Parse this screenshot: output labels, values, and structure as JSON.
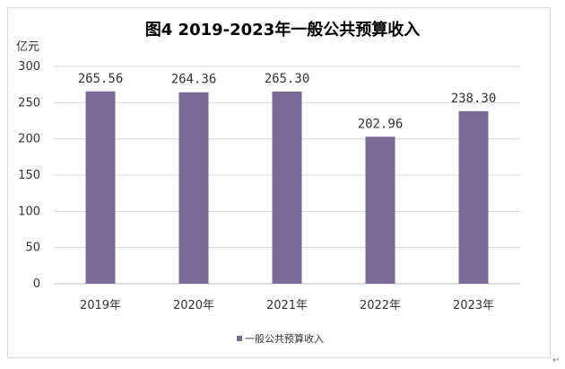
{
  "chart_data": {
    "type": "bar",
    "title": "图4 2019-2023年一般公共预算收入",
    "ylabel": "亿元",
    "xlabel": "",
    "categories": [
      "2019年",
      "2020年",
      "2021年",
      "2022年",
      "2023年"
    ],
    "series": [
      {
        "name": "一般公共预算收入",
        "values": [
          265.56,
          264.36,
          265.3,
          202.96,
          238.3
        ],
        "labels": [
          "265.56",
          "264.36",
          "265.30",
          "202.96",
          "238.30"
        ],
        "color": "#7b6a95"
      }
    ],
    "ylim": [
      0,
      300
    ],
    "yticks": [
      0,
      50,
      100,
      150,
      200,
      250,
      300
    ],
    "grid": true,
    "legend": "bottom"
  },
  "corner_mark": "↵"
}
